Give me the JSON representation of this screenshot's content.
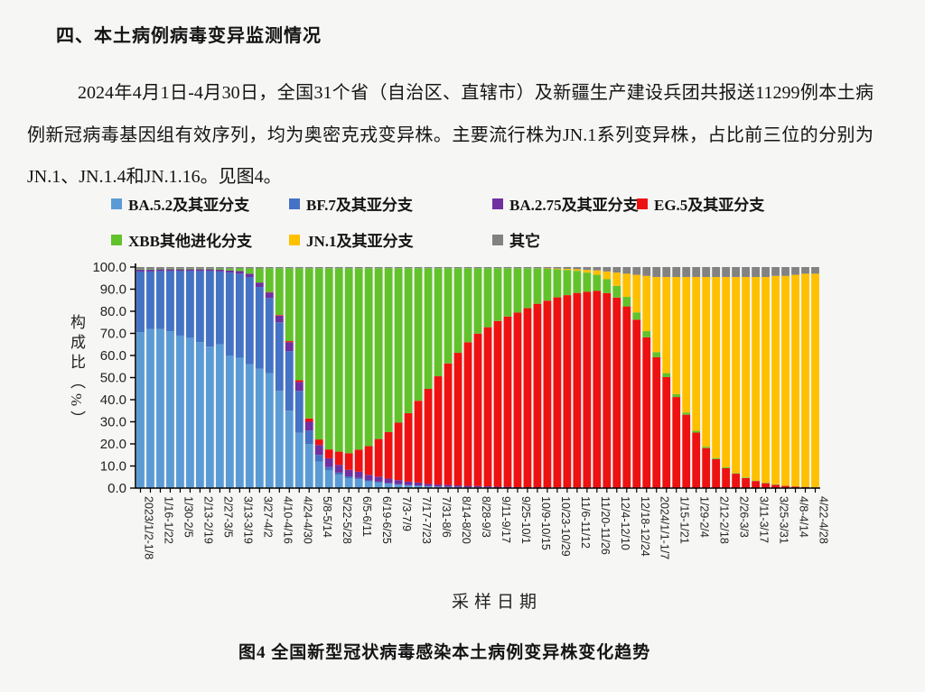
{
  "document": {
    "heading": "四、本土病例病毒变异监测情况",
    "paragraph": "2024年4月1日-4月30日，全国31个省（自治区、直辖市）及新疆生产建设兵团共报送11299例本土病例新冠病毒基因组有效序列，均为奥密克戎变异株。主要流行株为JN.1系列变异株，占比前三位的分别为JN.1、JN.1.4和JN.1.16。见图4。",
    "figure_caption": "图4 全国新型冠状病毒感染本土病例变异株变化趋势"
  },
  "chart_data": {
    "type": "bar",
    "stacked": true,
    "title": "",
    "xlabel": "采样日期",
    "ylabel": "构成比（%）",
    "ylim": [
      0,
      100
    ],
    "grid": false,
    "legend_position": "top",
    "y_ticks": [
      "100.0",
      "90.0",
      "80.0",
      "70.0",
      "60.0",
      "50.0",
      "40.0",
      "30.0",
      "20.0",
      "10.0",
      "0.0"
    ],
    "x_tick_every": 2,
    "x_tick_labels": [
      "2023/1/2-1/8",
      "1/16-1/22",
      "1/30-2/5",
      "2/13-2/19",
      "2/27-3/5",
      "3/13-3/19",
      "3/27-4/2",
      "4/10-4/16",
      "4/24-4/30",
      "5/8-5/14",
      "5/22-5/28",
      "6/5-6/11",
      "6/19-6/25",
      "7/3-7/9",
      "7/17-7/23",
      "7/31-8/6",
      "8/14-8/20",
      "8/28-9/3",
      "9/11-9/17",
      "9/25-10/1",
      "10/9-10/15",
      "10/23-10/29",
      "11/6-11/12",
      "11/20-11/26",
      "12/4-12/10",
      "12/18-12/24",
      "2024/1/1-1/7",
      "1/15-1/21",
      "1/29-2/4",
      "2/12-2/18",
      "2/26-3/3",
      "3/11-3/17",
      "3/25-3/31",
      "4/8-4/14",
      "4/22-4/28"
    ],
    "series": [
      {
        "name": "BA.5.2及其亚分支",
        "color": "#5B9BD5",
        "values": [
          70.5,
          72,
          72,
          71,
          69,
          68,
          66,
          64,
          65,
          60,
          59,
          56,
          54,
          52,
          44,
          35,
          25,
          20,
          12,
          8,
          6,
          4.5,
          4,
          3,
          2.5,
          2,
          1.5,
          1.2,
          1,
          0.8,
          0.6,
          0.5,
          0.4,
          0.3,
          0.3,
          0.2,
          0.2,
          0.2,
          0.1,
          0.1,
          0.1,
          0.1,
          0.1,
          0.1,
          0.1,
          0.1,
          0.1,
          0.1,
          0.1,
          0.1,
          0.1,
          0.1,
          0.1,
          0.1,
          0.1,
          0.1,
          0.1,
          0.1,
          0.1,
          0,
          0,
          0,
          0,
          0,
          0,
          0,
          0,
          0,
          0
        ]
      },
      {
        "name": "BF.7及其亚分支",
        "color": "#4472C4",
        "values": [
          27.5,
          26,
          26.2,
          27.2,
          29.2,
          30.2,
          32.2,
          34.2,
          33,
          37.5,
          38,
          39.5,
          37,
          34,
          31,
          27,
          19,
          6,
          3,
          1.5,
          1,
          0.8,
          0.6,
          0.5,
          0.4,
          0.3,
          0.3,
          0.2,
          0.2,
          0.1,
          0.1,
          0.1,
          0.1,
          0.1,
          0.1,
          0.1,
          0,
          0,
          0,
          0,
          0,
          0,
          0,
          0,
          0,
          0,
          0,
          0,
          0,
          0,
          0,
          0,
          0,
          0,
          0,
          0,
          0,
          0,
          0,
          0,
          0,
          0,
          0,
          0,
          0,
          0,
          0,
          0,
          0
        ]
      },
      {
        "name": "BA.2.75及其亚分支",
        "color": "#7030A0",
        "values": [
          0.8,
          0.8,
          0.8,
          0.8,
          0.8,
          0.8,
          0.8,
          0.8,
          0.9,
          1,
          1.2,
          1.5,
          2,
          2.5,
          3,
          4,
          4,
          4,
          4.5,
          4,
          3.5,
          3,
          2.8,
          2.5,
          2.3,
          2,
          1.8,
          1.5,
          1.3,
          1,
          0.9,
          0.8,
          0.7,
          0.6,
          0.5,
          0.5,
          0.4,
          0.4,
          0.3,
          0.3,
          0.3,
          0.2,
          0.2,
          0.2,
          0.2,
          0.2,
          0.1,
          0.1,
          0.1,
          0.1,
          0.1,
          0.1,
          0.1,
          0.1,
          0.1,
          0.1,
          0,
          0,
          0,
          0,
          0,
          0,
          0,
          0,
          0,
          0,
          0,
          0,
          0
        ]
      },
      {
        "name": "EG.5及其亚分支",
        "color": "#EE1111",
        "values": [
          0,
          0,
          0,
          0,
          0,
          0,
          0,
          0,
          0,
          0,
          0,
          0,
          0,
          0.2,
          0.3,
          0.5,
          0.8,
          1.5,
          2.5,
          4,
          6,
          7.5,
          10,
          13,
          17,
          21,
          26,
          31,
          37,
          43,
          49,
          55,
          60,
          65,
          69,
          72,
          75,
          77,
          79,
          81,
          83,
          84.5,
          86,
          87,
          88,
          88.5,
          89,
          88,
          86,
          82,
          76,
          68,
          59,
          50,
          41,
          33,
          25,
          18,
          13,
          9,
          6.5,
          4.5,
          3.2,
          2.2,
          1.5,
          1,
          0.7,
          0.5,
          0.3
        ]
      },
      {
        "name": "XBB其他进化分支",
        "color": "#62C22C",
        "values": [
          0.2,
          0.2,
          0.2,
          0.3,
          0.3,
          0.3,
          0.3,
          0.3,
          0.5,
          0.8,
          1.2,
          2.4,
          6.4,
          10.8,
          21.2,
          33,
          50.7,
          68,
          77.5,
          82,
          83,
          83.7,
          82.1,
          80.5,
          77.3,
          74.2,
          69.9,
          65.6,
          60,
          54.6,
          48.9,
          43.1,
          38.3,
          33.5,
          29.6,
          26.7,
          23.9,
          21.9,
          20.1,
          18.1,
          16.1,
          14.4,
          12.7,
          11.4,
          10,
          8.7,
          7.3,
          6.3,
          5.3,
          4.3,
          3.3,
          2.8,
          2.3,
          1.8,
          1.3,
          1,
          0.8,
          0.6,
          0.5,
          0.4,
          0.3,
          0.3,
          0.2,
          0.2,
          0.2,
          0.1,
          0.1,
          0.1,
          0.1
        ]
      },
      {
        "name": "JN.1及其亚分支",
        "color": "#FFC000",
        "values": [
          0,
          0,
          0,
          0,
          0,
          0,
          0,
          0,
          0,
          0,
          0,
          0,
          0,
          0,
          0,
          0,
          0,
          0,
          0,
          0,
          0,
          0,
          0,
          0,
          0,
          0,
          0,
          0,
          0,
          0,
          0,
          0,
          0,
          0,
          0,
          0,
          0,
          0,
          0,
          0,
          0,
          0.2,
          0.3,
          0.5,
          0.7,
          1.2,
          2,
          3.5,
          6,
          10.5,
          17,
          25,
          34,
          43.5,
          53,
          61.3,
          69.6,
          76.8,
          81.9,
          86.1,
          88.7,
          90.7,
          92.1,
          93.1,
          94.3,
          94.9,
          95.7,
          96.4,
          96.6
        ]
      },
      {
        "name": "其它",
        "color": "#828282",
        "values": [
          1,
          1,
          0.8,
          0.7,
          0.7,
          0.7,
          0.7,
          0.7,
          0.6,
          0.7,
          0.6,
          0.6,
          0.6,
          0.5,
          0.5,
          0.5,
          0.5,
          0.5,
          0.5,
          0.5,
          0.5,
          0.5,
          0.5,
          0.5,
          0.5,
          0.5,
          0.5,
          0.5,
          0.5,
          0.5,
          0.5,
          0.5,
          0.5,
          0.5,
          0.5,
          0.5,
          0.5,
          0.5,
          0.5,
          0.5,
          0.5,
          0.6,
          0.7,
          0.8,
          1,
          1.3,
          1.5,
          2,
          2.5,
          3,
          3.5,
          4,
          4.5,
          4.5,
          4.5,
          4.5,
          4.5,
          4.5,
          4.5,
          4.5,
          4.5,
          4.5,
          4.5,
          4.5,
          4,
          4,
          3.5,
          3,
          3
        ]
      }
    ]
  }
}
